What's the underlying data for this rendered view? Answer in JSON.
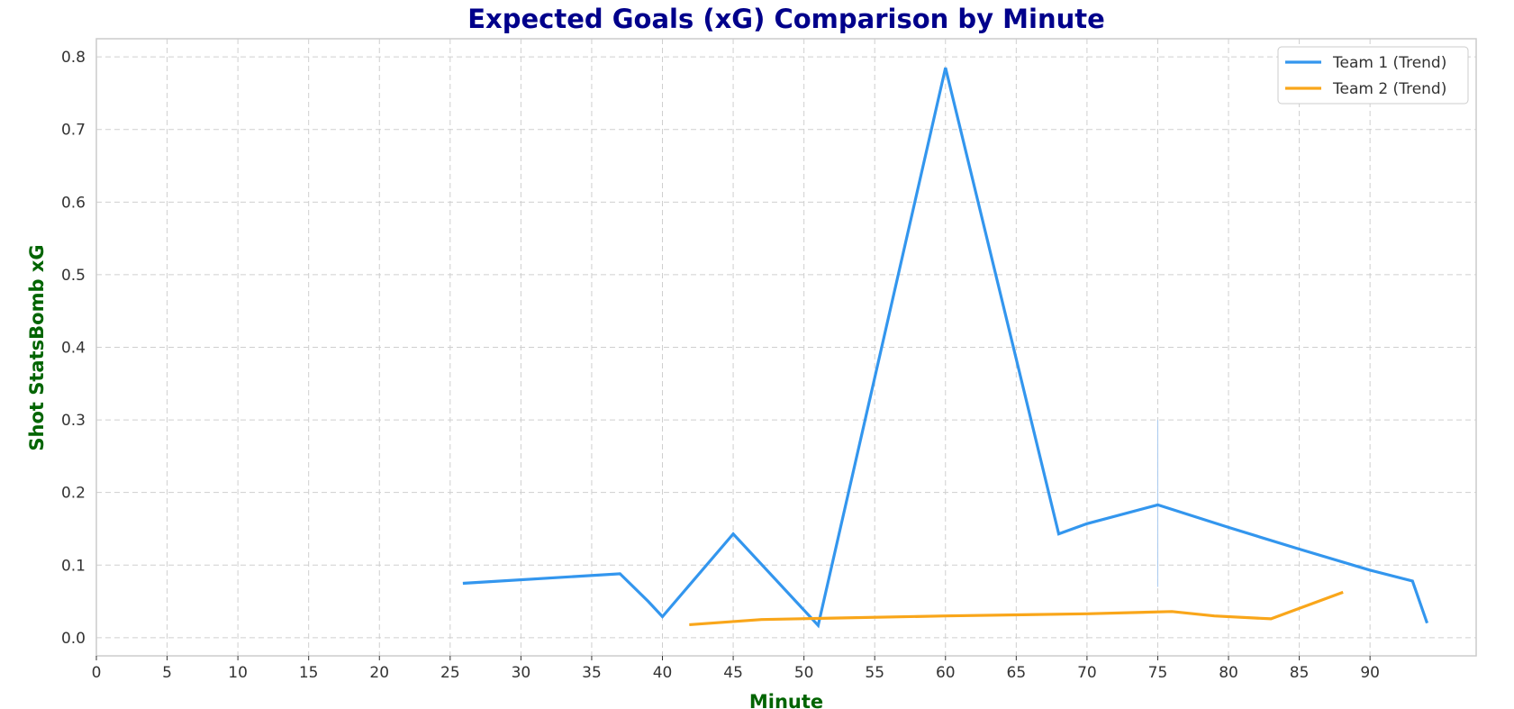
{
  "chart_data": {
    "type": "line",
    "title": "Expected Goals (xG) Comparison by Minute",
    "xlabel": "Minute",
    "ylabel": "Shot StatsBomb xG",
    "xlim": [
      0,
      97.5
    ],
    "ylim": [
      -0.025,
      0.825
    ],
    "x_ticks": [
      0,
      5,
      10,
      15,
      20,
      25,
      30,
      35,
      40,
      45,
      50,
      55,
      60,
      65,
      70,
      75,
      80,
      85,
      90
    ],
    "y_ticks": [
      0.0,
      0.1,
      0.2,
      0.3,
      0.4,
      0.5,
      0.6,
      0.7,
      0.8
    ],
    "grid": true,
    "legend_position": "top-right",
    "series": [
      {
        "name": "Team 1 (Trend)",
        "color": "#3396ee",
        "points": [
          [
            26,
            0.075
          ],
          [
            37,
            0.088
          ],
          [
            39,
            0.05
          ],
          [
            40,
            0.029
          ],
          [
            45,
            0.143
          ],
          [
            51,
            0.017
          ],
          [
            60,
            0.785
          ],
          [
            68,
            0.143
          ],
          [
            70,
            0.157
          ],
          [
            75,
            0.183
          ],
          [
            80,
            0.152
          ],
          [
            85,
            0.122
          ],
          [
            90,
            0.093
          ],
          [
            93,
            0.078
          ],
          [
            94,
            0.022
          ]
        ]
      },
      {
        "name": "Team 2 (Trend)",
        "color": "#f9a61a",
        "points": [
          [
            42,
            0.018
          ],
          [
            47,
            0.025
          ],
          [
            52,
            0.027
          ],
          [
            60,
            0.03
          ],
          [
            70,
            0.033
          ],
          [
            76,
            0.036
          ],
          [
            79,
            0.03
          ],
          [
            83,
            0.026
          ],
          [
            88,
            0.062
          ]
        ]
      }
    ],
    "annotations": [
      {
        "type": "vline",
        "x": 75,
        "y_range": [
          0.07,
          0.3
        ],
        "color": "#a9c9f0"
      }
    ]
  },
  "colors": {
    "title": "#00008b",
    "axis_label": "#006400",
    "frame": "#cccccc"
  }
}
